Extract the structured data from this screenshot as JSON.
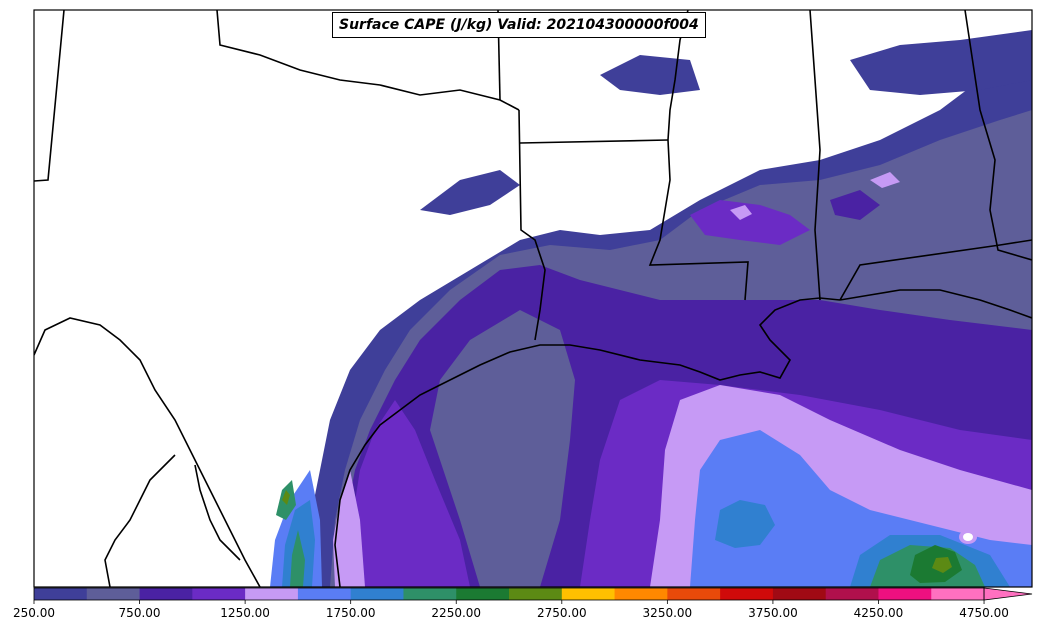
{
  "title": "Surface CAPE (J/kg) Valid: 202104300000f004",
  "colorbar": {
    "colors": [
      "#3f3f99",
      "#5e5e99",
      "#4a22a3",
      "#6b2bc5",
      "#c69af5",
      "#5a7df5",
      "#3080d0",
      "#2e9068",
      "#1b7a32",
      "#5c8a14",
      "#ffc000",
      "#ff8800",
      "#e84a0a",
      "#d00a0a",
      "#a00a14",
      "#b0104c",
      "#ee1080",
      "#ff70c0"
    ],
    "extend_color": "#ff70c0",
    "ticks": [
      "250.00",
      "750.00",
      "1250.00",
      "1750.00",
      "2250.00",
      "2750.00",
      "3250.00",
      "3750.00",
      "4250.00",
      "4750.00"
    ],
    "min": 250,
    "max": 4750,
    "step": 250
  },
  "map": {
    "background": "#ffffff",
    "border": "#000000",
    "cape_colors": {
      "lvl1": "#3f3f99",
      "lvl2": "#5e5e99",
      "lvl3": "#4a22a3",
      "lvl4": "#6b2bc5",
      "lvl5": "#c69af5",
      "lvl6": "#5a7df5",
      "lvl7": "#3080d0",
      "lvl8": "#2e9068",
      "lvl9": "#1b7a32",
      "lvl10": "#5c8a14"
    }
  }
}
